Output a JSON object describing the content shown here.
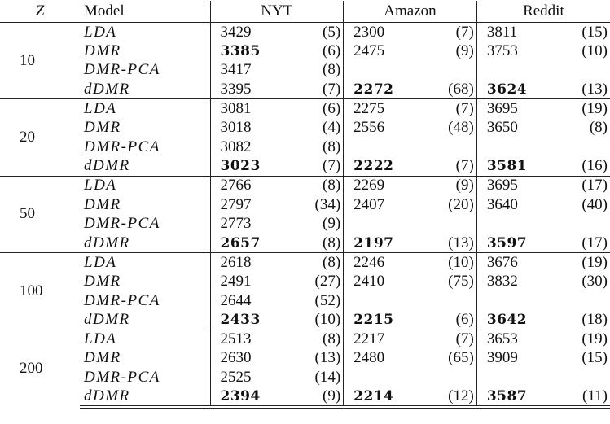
{
  "header": {
    "z": "Z",
    "model": "Model",
    "datasets": [
      "NYT",
      "Amazon",
      "Reddit"
    ]
  },
  "groups": [
    {
      "z": "10",
      "rows": [
        {
          "model": "LDA",
          "cells": [
            {
              "v": "3429",
              "p": "(5)",
              "bold": false
            },
            {
              "v": "2300",
              "p": "(7)",
              "bold": false
            },
            {
              "v": "3811",
              "p": "(15)",
              "bold": false
            }
          ]
        },
        {
          "model": "DMR",
          "cells": [
            {
              "v": "3385",
              "p": "(6)",
              "bold": true
            },
            {
              "v": "2475",
              "p": "(9)",
              "bold": false
            },
            {
              "v": "3753",
              "p": "(10)",
              "bold": false
            }
          ]
        },
        {
          "model": "DMR-PCA",
          "cells": [
            {
              "v": "3417",
              "p": "(8)",
              "bold": false
            },
            null,
            null
          ]
        },
        {
          "model": "dDMR",
          "cells": [
            {
              "v": "3395",
              "p": "(7)",
              "bold": false
            },
            {
              "v": "2272",
              "p": "(68)",
              "bold": true
            },
            {
              "v": "3624",
              "p": "(13)",
              "bold": true
            }
          ]
        }
      ]
    },
    {
      "z": "20",
      "rows": [
        {
          "model": "LDA",
          "cells": [
            {
              "v": "3081",
              "p": "(6)",
              "bold": false
            },
            {
              "v": "2275",
              "p": "(7)",
              "bold": false
            },
            {
              "v": "3695",
              "p": "(19)",
              "bold": false
            }
          ]
        },
        {
          "model": "DMR",
          "cells": [
            {
              "v": "3018",
              "p": "(4)",
              "bold": false
            },
            {
              "v": "2556",
              "p": "(48)",
              "bold": false
            },
            {
              "v": "3650",
              "p": "(8)",
              "bold": false
            }
          ]
        },
        {
          "model": "DMR-PCA",
          "cells": [
            {
              "v": "3082",
              "p": "(8)",
              "bold": false
            },
            null,
            null
          ]
        },
        {
          "model": "dDMR",
          "cells": [
            {
              "v": "3023",
              "p": "(7)",
              "bold": true
            },
            {
              "v": "2222",
              "p": "(7)",
              "bold": true
            },
            {
              "v": "3581",
              "p": "(16)",
              "bold": true
            }
          ]
        }
      ]
    },
    {
      "z": "50",
      "rows": [
        {
          "model": "LDA",
          "cells": [
            {
              "v": "2766",
              "p": "(8)",
              "bold": false
            },
            {
              "v": "2269",
              "p": "(9)",
              "bold": false
            },
            {
              "v": "3695",
              "p": "(17)",
              "bold": false
            }
          ]
        },
        {
          "model": "DMR",
          "cells": [
            {
              "v": "2797",
              "p": "(34)",
              "bold": false
            },
            {
              "v": "2407",
              "p": "(20)",
              "bold": false
            },
            {
              "v": "3640",
              "p": "(40)",
              "bold": false
            }
          ]
        },
        {
          "model": "DMR-PCA",
          "cells": [
            {
              "v": "2773",
              "p": "(9)",
              "bold": false
            },
            null,
            null
          ]
        },
        {
          "model": "dDMR",
          "cells": [
            {
              "v": "2657",
              "p": "(8)",
              "bold": true
            },
            {
              "v": "2197",
              "p": "(13)",
              "bold": true
            },
            {
              "v": "3597",
              "p": "(17)",
              "bold": true
            }
          ]
        }
      ]
    },
    {
      "z": "100",
      "rows": [
        {
          "model": "LDA",
          "cells": [
            {
              "v": "2618",
              "p": "(8)",
              "bold": false
            },
            {
              "v": "2246",
              "p": "(10)",
              "bold": false
            },
            {
              "v": "3676",
              "p": "(19)",
              "bold": false
            }
          ]
        },
        {
          "model": "DMR",
          "cells": [
            {
              "v": "2491",
              "p": "(27)",
              "bold": false
            },
            {
              "v": "2410",
              "p": "(75)",
              "bold": false
            },
            {
              "v": "3832",
              "p": "(30)",
              "bold": false
            }
          ]
        },
        {
          "model": "DMR-PCA",
          "cells": [
            {
              "v": "2644",
              "p": "(52)",
              "bold": false
            },
            null,
            null
          ]
        },
        {
          "model": "dDMR",
          "cells": [
            {
              "v": "2433",
              "p": "(10)",
              "bold": true
            },
            {
              "v": "2215",
              "p": "(6)",
              "bold": true
            },
            {
              "v": "3642",
              "p": "(18)",
              "bold": true
            }
          ]
        }
      ]
    },
    {
      "z": "200",
      "rows": [
        {
          "model": "LDA",
          "cells": [
            {
              "v": "2513",
              "p": "(8)",
              "bold": false
            },
            {
              "v": "2217",
              "p": "(7)",
              "bold": false
            },
            {
              "v": "3653",
              "p": "(19)",
              "bold": false
            }
          ]
        },
        {
          "model": "DMR",
          "cells": [
            {
              "v": "2630",
              "p": "(13)",
              "bold": false
            },
            {
              "v": "2480",
              "p": "(65)",
              "bold": false
            },
            {
              "v": "3909",
              "p": "(15)",
              "bold": false
            }
          ]
        },
        {
          "model": "DMR-PCA",
          "cells": [
            {
              "v": "2525",
              "p": "(14)",
              "bold": false
            },
            null,
            null
          ]
        },
        {
          "model": "dDMR",
          "cells": [
            {
              "v": "2394",
              "p": "(9)",
              "bold": true
            },
            {
              "v": "2214",
              "p": "(12)",
              "bold": true
            },
            {
              "v": "3587",
              "p": "(11)",
              "bold": true
            }
          ]
        }
      ]
    }
  ]
}
